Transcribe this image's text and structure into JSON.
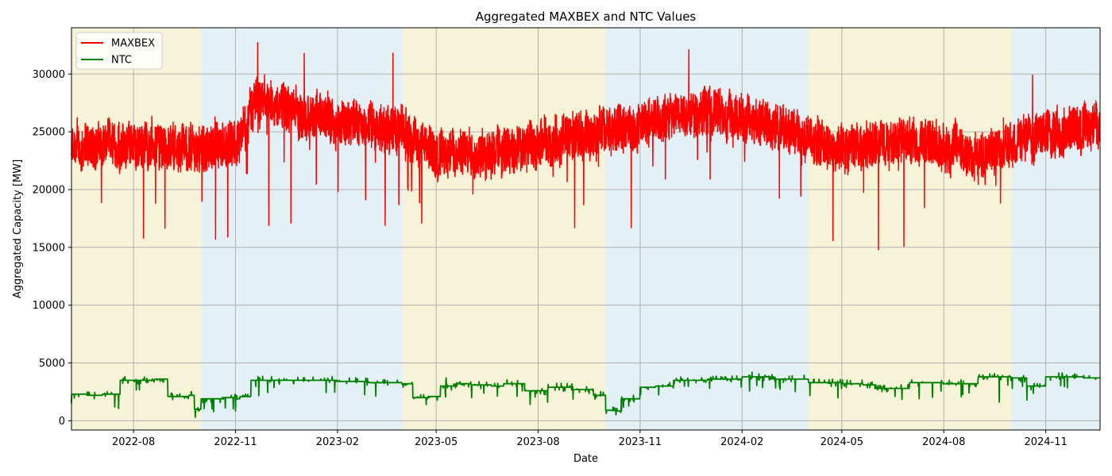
{
  "chart_data": {
    "type": "line",
    "title": "Aggregated MAXBEX and NTC Values",
    "xlabel": "Date",
    "ylabel": "Aggregated Capacity [MW]",
    "x_range": [
      "2022-06-06",
      "2024-12-20"
    ],
    "ylim": [
      -800,
      34000
    ],
    "x_ticks": [
      {
        "date": "2022-08-01",
        "label": "2022-08"
      },
      {
        "date": "2022-11-01",
        "label": "2022-11"
      },
      {
        "date": "2023-02-01",
        "label": "2023-02"
      },
      {
        "date": "2023-05-01",
        "label": "2023-05"
      },
      {
        "date": "2023-08-01",
        "label": "2023-08"
      },
      {
        "date": "2023-11-01",
        "label": "2023-11"
      },
      {
        "date": "2024-02-01",
        "label": "2024-02"
      },
      {
        "date": "2024-05-01",
        "label": "2024-05"
      },
      {
        "date": "2024-08-01",
        "label": "2024-08"
      },
      {
        "date": "2024-11-01",
        "label": "2024-11"
      }
    ],
    "y_ticks": [
      0,
      5000,
      10000,
      15000,
      20000,
      25000,
      30000
    ],
    "grid": true,
    "legend_position": "top-left",
    "background_bands": [
      {
        "start": "2022-06-06",
        "end": "2022-10-01",
        "color": "#f7f3d8"
      },
      {
        "start": "2022-10-01",
        "end": "2023-04-01",
        "color": "#e3f1f7"
      },
      {
        "start": "2023-04-01",
        "end": "2023-10-01",
        "color": "#f7f3d8"
      },
      {
        "start": "2023-10-01",
        "end": "2024-04-01",
        "color": "#e3f1f7"
      },
      {
        "start": "2024-04-01",
        "end": "2024-10-01",
        "color": "#f7f3d8"
      },
      {
        "start": "2024-10-01",
        "end": "2024-12-20",
        "color": "#e3f1f7"
      }
    ],
    "series": [
      {
        "name": "MAXBEX",
        "color": "#ff0000",
        "x": [
          "2022-06-06",
          "2022-07-01",
          "2022-08-01",
          "2022-09-01",
          "2022-10-01",
          "2022-11-01",
          "2022-11-20",
          "2022-12-01",
          "2023-01-01",
          "2023-02-01",
          "2023-03-01",
          "2023-04-01",
          "2023-05-01",
          "2023-06-01",
          "2023-07-01",
          "2023-08-01",
          "2023-09-01",
          "2023-10-01",
          "2023-11-01",
          "2023-12-01",
          "2024-01-01",
          "2024-02-01",
          "2024-03-01",
          "2024-04-01",
          "2024-05-01",
          "2024-06-01",
          "2024-07-01",
          "2024-08-01",
          "2024-09-01",
          "2024-10-01",
          "2024-11-01",
          "2024-12-20"
        ],
        "values": [
          23500,
          23800,
          24000,
          23800,
          23500,
          23500,
          28000,
          27500,
          26500,
          26000,
          25500,
          25000,
          23000,
          23200,
          23500,
          23800,
          24500,
          25000,
          25500,
          26500,
          27000,
          26000,
          25500,
          24500,
          23500,
          24000,
          24500,
          23800,
          22800,
          24000,
          25000,
          25500
        ],
        "spikes": [
          {
            "x": "2022-08-10",
            "y": 15800
          },
          {
            "x": "2022-10-14",
            "y": 15700
          },
          {
            "x": "2022-10-25",
            "y": 15900
          },
          {
            "x": "2022-12-01",
            "y": 16900
          },
          {
            "x": "2022-12-21",
            "y": 17100
          },
          {
            "x": "2023-03-16",
            "y": 16900
          },
          {
            "x": "2023-04-18",
            "y": 17100
          },
          {
            "x": "2023-09-03",
            "y": 16700
          },
          {
            "x": "2023-10-24",
            "y": 16700
          },
          {
            "x": "2024-04-23",
            "y": 15600
          },
          {
            "x": "2024-06-03",
            "y": 14800
          },
          {
            "x": "2024-06-26",
            "y": 15100
          },
          {
            "x": "2022-11-21",
            "y": 32700
          },
          {
            "x": "2023-01-02",
            "y": 31800
          },
          {
            "x": "2023-03-23",
            "y": 31800
          },
          {
            "x": "2023-12-15",
            "y": 32100
          },
          {
            "x": "2024-10-20",
            "y": 29900
          }
        ]
      },
      {
        "name": "NTC",
        "color": "#008000",
        "x": [
          "2022-06-06",
          "2022-06-20",
          "2022-07-04",
          "2022-07-20",
          "2022-08-20",
          "2022-09-01",
          "2022-09-20",
          "2022-09-25",
          "2022-10-01",
          "2022-10-20",
          "2022-11-01",
          "2022-11-05",
          "2022-11-15",
          "2023-01-01",
          "2023-02-01",
          "2023-03-01",
          "2023-03-31",
          "2023-04-10",
          "2023-04-25",
          "2023-05-05",
          "2023-05-20",
          "2023-06-01",
          "2023-06-20",
          "2023-07-01",
          "2023-07-20",
          "2023-08-10",
          "2023-09-01",
          "2023-09-20",
          "2023-10-01",
          "2023-10-10",
          "2023-10-15",
          "2023-11-01",
          "2023-11-15",
          "2023-12-01",
          "2024-01-01",
          "2024-02-01",
          "2024-03-01",
          "2024-04-01",
          "2024-05-01",
          "2024-05-20",
          "2024-06-01",
          "2024-07-01",
          "2024-08-01",
          "2024-09-01",
          "2024-10-01",
          "2024-10-15",
          "2024-11-01",
          "2024-12-05",
          "2024-12-20"
        ],
        "values": [
          2300,
          2200,
          2300,
          3500,
          3600,
          2100,
          2200,
          1000,
          1900,
          2000,
          1900,
          2100,
          3500,
          3500,
          3400,
          3300,
          3200,
          2000,
          2100,
          3000,
          3200,
          3100,
          3000,
          3200,
          2600,
          2900,
          2700,
          2200,
          900,
          850,
          1900,
          2900,
          3000,
          3500,
          3600,
          3800,
          3600,
          3300,
          3200,
          3100,
          2800,
          3300,
          3200,
          3800,
          3700,
          3000,
          3800,
          3700,
          3700
        ],
        "spikes": [
          {
            "x": "2023-04-22",
            "y": 1400
          },
          {
            "x": "2023-05-10",
            "y": 3700
          },
          {
            "x": "2023-07-25",
            "y": 2000
          },
          {
            "x": "2024-09-20",
            "y": 1600
          },
          {
            "x": "2024-02-10",
            "y": 4200
          }
        ]
      }
    ]
  }
}
